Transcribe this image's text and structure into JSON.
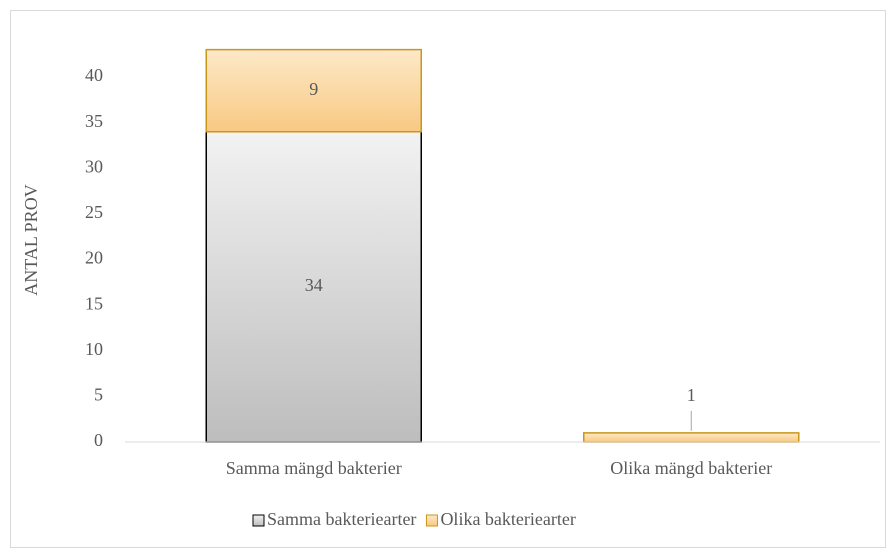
{
  "chart_data": {
    "type": "stacked_bar",
    "y_label": "ANTAL PROV",
    "categories": [
      "Samma mängd bakterier",
      "Olika mängd bakterier"
    ],
    "series": [
      {
        "name": "Samma bakteriearter",
        "color": "#000000",
        "values": [
          34,
          0
        ]
      },
      {
        "name": "Olika bakteriearter",
        "color": "#c9961a",
        "values": [
          9,
          1
        ]
      }
    ],
    "ylim": [
      0,
      45
    ],
    "yticks": [
      0,
      5,
      10,
      15,
      20,
      25,
      30,
      35,
      40
    ],
    "grid": false,
    "legend": "bottom"
  }
}
